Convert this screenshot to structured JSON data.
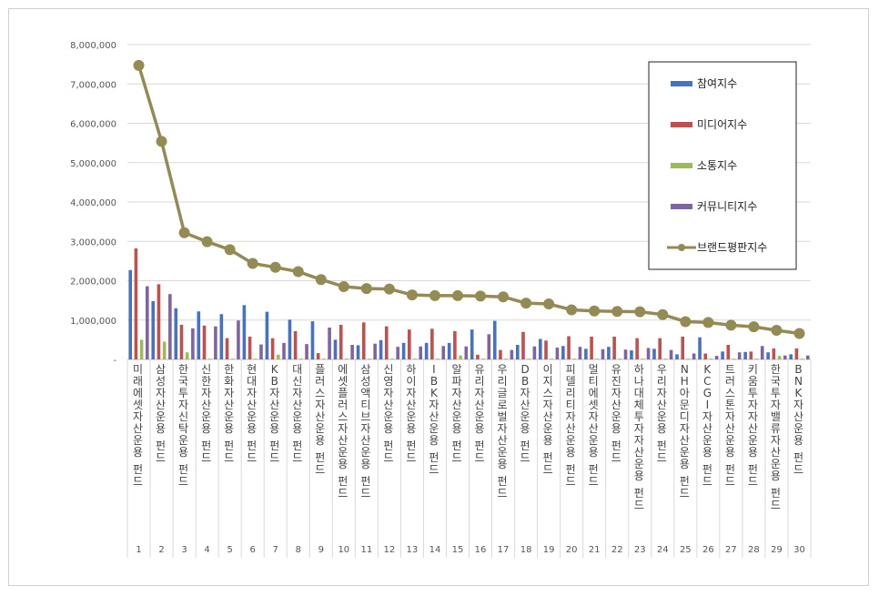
{
  "chart_data": {
    "type": "bar",
    "title": "",
    "xlabel": "",
    "ylabel": "",
    "ylim": [
      0,
      8000000
    ],
    "yticks": [
      "-",
      "1,000,000",
      "2,000,000",
      "3,000,000",
      "4,000,000",
      "5,000,000",
      "6,000,000",
      "7,000,000",
      "8,000,000"
    ],
    "grid": "horizontal",
    "legend_position": "top-right",
    "ranks": [
      "1",
      "2",
      "3",
      "4",
      "5",
      "6",
      "7",
      "8",
      "9",
      "10",
      "11",
      "12",
      "13",
      "14",
      "15",
      "16",
      "17",
      "18",
      "19",
      "20",
      "21",
      "22",
      "23",
      "24",
      "25",
      "26",
      "27",
      "28",
      "29",
      "30"
    ],
    "categories": [
      "미래에셋자산운용 펀드",
      "삼성자산운용 펀드",
      "한국투자신탁운용 펀드",
      "신한자산운용 펀드",
      "한화자산운용 펀드",
      "현대자산운용 펀드",
      "KB자산운용 펀드",
      "대신자산운용 펀드",
      "플러스자산운용 펀드",
      "에셋플러스자산운용 펀드",
      "삼성액티브자산운용 펀드",
      "신영자산운용 펀드",
      "하이자산운용 펀드",
      "IBK자산운용 펀드",
      "알파자산운용 펀드",
      "유리자산운용 펀드",
      "우리글로벌자산운용 펀드",
      "DB자산운용 펀드",
      "이지스자산운용 펀드",
      "피델리티자산운용 펀드",
      "멀티에셋자산운용 펀드",
      "유진자산운용 펀드",
      "하나대체투자자산운용 펀드",
      "우리자산운용 펀드",
      "NH아문디자산운용 펀드",
      "KCGI자산운용 펀드",
      "트러스톤자산운용 펀드",
      "키움투자자산운용 펀드",
      "한국투자밸류자산운용 펀드",
      "BNK자산운용 펀드"
    ],
    "series": [
      {
        "name": "참여지수",
        "type": "bar",
        "color": "#4472C4",
        "values": [
          2270000,
          1480000,
          1300000,
          1220000,
          1150000,
          1380000,
          1210000,
          1010000,
          970000,
          500000,
          360000,
          490000,
          420000,
          420000,
          420000,
          760000,
          980000,
          370000,
          520000,
          340000,
          270000,
          320000,
          230000,
          270000,
          130000,
          560000,
          200000,
          190000,
          180000,
          130000
        ]
      },
      {
        "name": "미디어지수",
        "type": "bar",
        "color": "#C0504D",
        "values": [
          2820000,
          1910000,
          880000,
          860000,
          540000,
          580000,
          540000,
          720000,
          160000,
          880000,
          940000,
          840000,
          760000,
          780000,
          720000,
          120000,
          240000,
          700000,
          480000,
          590000,
          580000,
          580000,
          540000,
          540000,
          580000,
          150000,
          370000,
          200000,
          280000,
          280000
        ]
      },
      {
        "name": "소통지수",
        "type": "bar",
        "color": "#9BBB59",
        "values": [
          500000,
          450000,
          180000,
          20000,
          20000,
          20000,
          120000,
          20000,
          20000,
          20000,
          20000,
          20000,
          20000,
          20000,
          100000,
          20000,
          20000,
          20000,
          20000,
          20000,
          20000,
          20000,
          20000,
          20000,
          20000,
          20000,
          20000,
          20000,
          90000,
          20000
        ]
      },
      {
        "name": "커뮤니티지수",
        "type": "bar",
        "color": "#8064A2",
        "values": [
          1860000,
          1660000,
          790000,
          840000,
          990000,
          380000,
          420000,
          390000,
          810000,
          370000,
          400000,
          320000,
          330000,
          340000,
          330000,
          640000,
          240000,
          330000,
          300000,
          320000,
          260000,
          250000,
          290000,
          240000,
          150000,
          90000,
          180000,
          340000,
          100000,
          100000
        ]
      },
      {
        "name": "브랜드평판지수",
        "type": "line",
        "color": "#948A54",
        "values": [
          7470000,
          5540000,
          3220000,
          2990000,
          2790000,
          2440000,
          2340000,
          2230000,
          2030000,
          1850000,
          1800000,
          1790000,
          1640000,
          1620000,
          1620000,
          1610000,
          1590000,
          1430000,
          1410000,
          1260000,
          1230000,
          1220000,
          1210000,
          1140000,
          960000,
          940000,
          870000,
          830000,
          740000,
          660000
        ]
      }
    ]
  }
}
